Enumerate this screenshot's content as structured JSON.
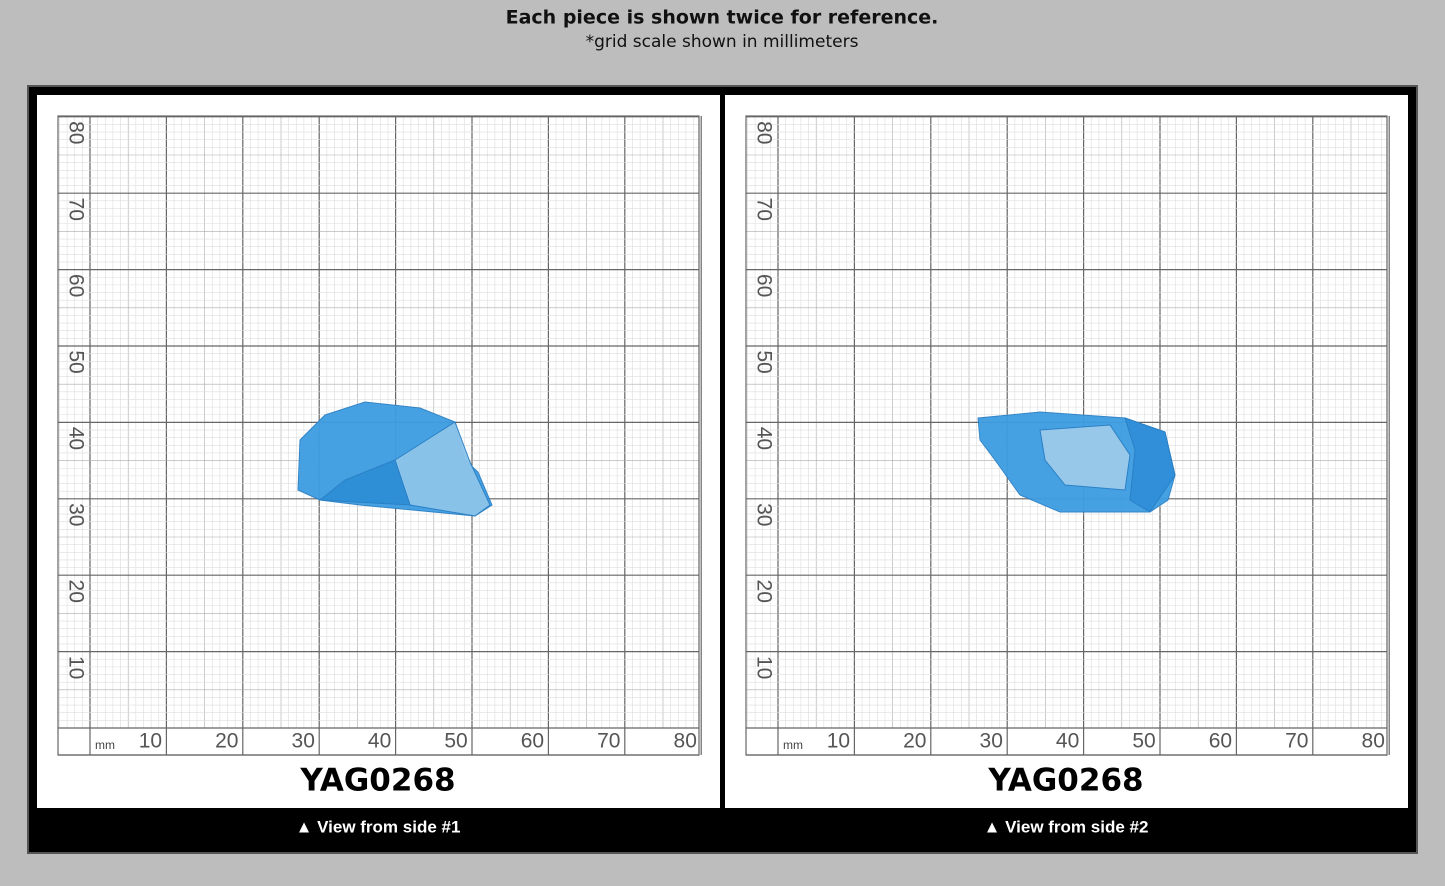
{
  "header": {
    "title": "Each piece is shown twice for reference.",
    "subtitle": "*grid scale shown in millimeters"
  },
  "panels": [
    {
      "sample_id": "YAG0268",
      "caption": "▲ View from side #1",
      "unit": "mm",
      "x_labels": [
        10,
        20,
        30,
        40,
        50,
        60,
        70,
        80
      ],
      "y_labels": [
        10,
        20,
        30,
        40,
        50,
        60,
        70,
        80
      ]
    },
    {
      "sample_id": "YAG0268",
      "caption": "▲ View from side #2",
      "unit": "mm",
      "x_labels": [
        10,
        20,
        30,
        40,
        50,
        60,
        70,
        80
      ],
      "y_labels": [
        10,
        20,
        30,
        40,
        50,
        60,
        70,
        80
      ]
    }
  ]
}
